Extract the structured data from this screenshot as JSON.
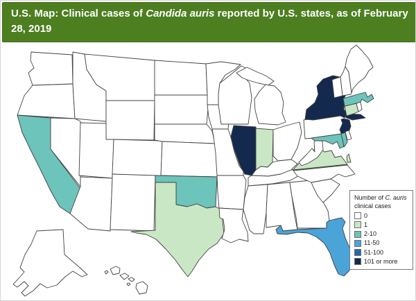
{
  "banner": {
    "title_prefix": "U.S. Map: Clinical cases of ",
    "title_italic": "Candida auris",
    "title_suffix": " reported by U.S. states, as of February 28, 2019",
    "bg_color": "#4d7e20"
  },
  "legend": {
    "title_prefix": "Number of ",
    "title_italic": "C. auris",
    "title_line2": "clinical cases",
    "items": [
      {
        "label": "0",
        "color": "#ffffff"
      },
      {
        "label": "1",
        "color": "#c9e7c4"
      },
      {
        "label": "2-10",
        "color": "#6cc4bb"
      },
      {
        "label": "11-50",
        "color": "#4ba4d8"
      },
      {
        "label": "51-100",
        "color": "#2169ad"
      },
      {
        "label": "101 or more",
        "color": "#14294e"
      }
    ]
  },
  "map": {
    "categories": {
      "0": "#ffffff",
      "1": "#c9e7c4",
      "2-10": "#6cc4bb",
      "11-50": "#4ba4d8",
      "51-100": "#2169ad",
      "101 or more": "#14294e"
    },
    "state_cases": {
      "california": "2-10",
      "oklahoma": "2-10",
      "massachusetts": "2-10",
      "maryland": "2-10",
      "texas": "1",
      "indiana": "1",
      "virginia": "1",
      "connecticut": "1",
      "florida": "11-50",
      "illinois": "101 or more",
      "new-york": "101 or more",
      "new-jersey": "101 or more"
    }
  }
}
